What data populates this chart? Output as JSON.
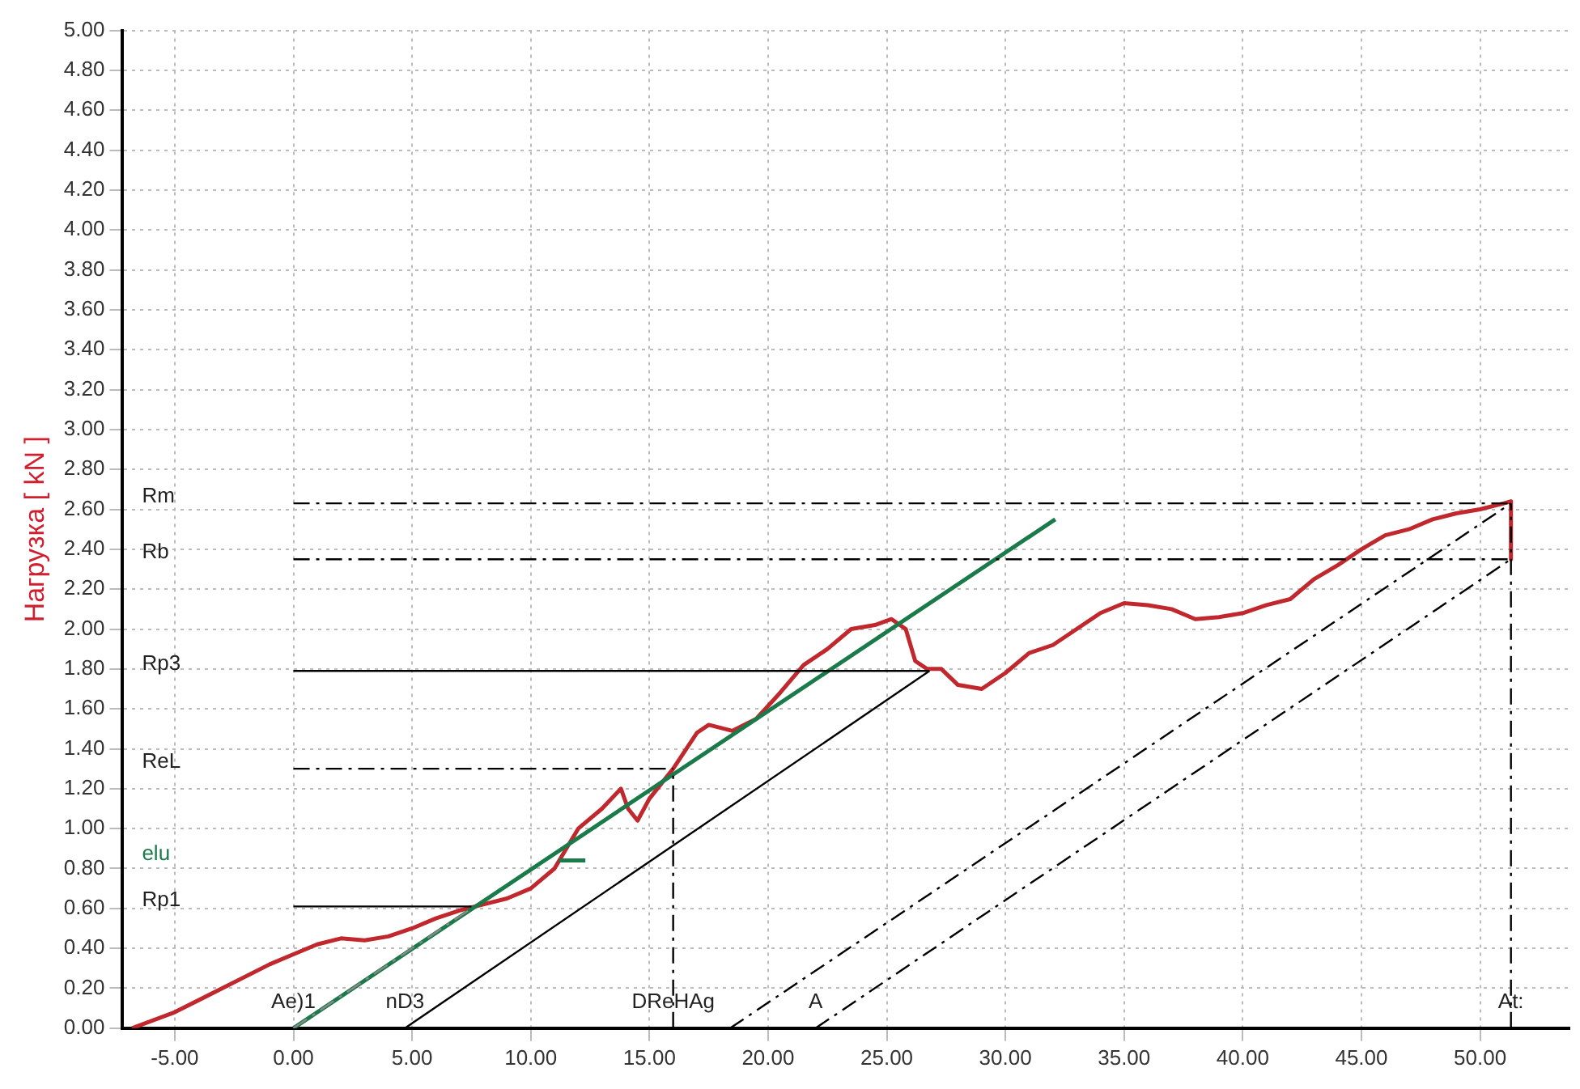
{
  "chart_data": {
    "type": "line",
    "ylabel": "Нагрузка [ kN ]",
    "xlim": [
      -7.2,
      53.8
    ],
    "ylim": [
      0,
      5
    ],
    "xticks": [
      {
        "value": -5,
        "label": "-5.00"
      },
      {
        "value": 0,
        "label": "0.00"
      },
      {
        "value": 5,
        "label": "5.00"
      },
      {
        "value": 10,
        "label": "10.00"
      },
      {
        "value": 15,
        "label": "15.00"
      },
      {
        "value": 20,
        "label": "20.00"
      },
      {
        "value": 25,
        "label": "25.00"
      },
      {
        "value": 30,
        "label": "30.00"
      },
      {
        "value": 35,
        "label": "35.00"
      },
      {
        "value": 40,
        "label": "40.00"
      },
      {
        "value": 45,
        "label": "45.00"
      },
      {
        "value": 50,
        "label": "50.00"
      }
    ],
    "yticks": [
      {
        "value": 0,
        "label": "0.00"
      },
      {
        "value": 0.2,
        "label": "0.20"
      },
      {
        "value": 0.4,
        "label": "0.40"
      },
      {
        "value": 0.6,
        "label": "0.60"
      },
      {
        "value": 0.8,
        "label": "0.80"
      },
      {
        "value": 1,
        "label": "1.00"
      },
      {
        "value": 1.2,
        "label": "1.20"
      },
      {
        "value": 1.4,
        "label": "1.40"
      },
      {
        "value": 1.6,
        "label": "1.60"
      },
      {
        "value": 1.8,
        "label": "1.80"
      },
      {
        "value": 2,
        "label": "2.00"
      },
      {
        "value": 2.2,
        "label": "2.20"
      },
      {
        "value": 2.4,
        "label": "2.40"
      },
      {
        "value": 2.6,
        "label": "2.60"
      },
      {
        "value": 2.8,
        "label": "2.80"
      },
      {
        "value": 3,
        "label": "3.00"
      },
      {
        "value": 3.2,
        "label": "3.20"
      },
      {
        "value": 3.4,
        "label": "3.40"
      },
      {
        "value": 3.6,
        "label": "3.60"
      },
      {
        "value": 3.8,
        "label": "3.80"
      },
      {
        "value": 4,
        "label": "4.00"
      },
      {
        "value": 4.2,
        "label": "4.20"
      },
      {
        "value": 4.4,
        "label": "4.40"
      },
      {
        "value": 4.6,
        "label": "4.60"
      },
      {
        "value": 4.8,
        "label": "4.80"
      },
      {
        "value": 5,
        "label": "5.00"
      }
    ],
    "grid": true,
    "legend": false,
    "marker": "none",
    "series": [
      {
        "color": "#000000",
        "line_style": "dashed",
        "x": [
          0,
          51.3
        ],
        "values": [
          2.63,
          2.63
        ]
      },
      {
        "color": "#000000",
        "line_style": "dashed",
        "x": [
          0,
          51.3
        ],
        "values": [
          2.35,
          2.35
        ]
      },
      {
        "color": "#000000",
        "line_style": "solid",
        "x": [
          0,
          26.8
        ],
        "values": [
          1.79,
          1.79
        ]
      },
      {
        "color": "#000000",
        "line_style": "dashed",
        "x": [
          0,
          16.0
        ],
        "values": [
          1.3,
          1.3
        ]
      },
      {
        "color": "#1a7a4a",
        "line_style": "solid",
        "x": [
          11.2,
          12.3
        ],
        "values": [
          0.84,
          0.84
        ]
      },
      {
        "color": "#000000",
        "line_style": "solid",
        "x": [
          0,
          7.5
        ],
        "values": [
          0.61,
          0.61
        ]
      },
      {
        "color": "#000000",
        "line_style": "dashed",
        "x": [
          16.0,
          16.0
        ],
        "values": [
          0,
          1.3
        ]
      },
      {
        "color": "#000000",
        "line_style": "dashed",
        "x": [
          51.3,
          51.3
        ],
        "values": [
          0,
          2.63
        ]
      },
      {
        "color": "#000000",
        "line_style": "solid",
        "x": [
          4.7,
          26.8
        ],
        "values": [
          0,
          1.79
        ]
      },
      {
        "color": "#000000",
        "line_style": "dashed",
        "x": [
          18.4,
          51.3
        ],
        "values": [
          0,
          2.63
        ]
      },
      {
        "color": "#000000",
        "line_style": "dashed",
        "x": [
          22.0,
          51.3
        ],
        "values": [
          0,
          2.35
        ]
      },
      {
        "color": "#888888",
        "line_style": "dashed",
        "x": [
          0,
          7.5
        ],
        "values": [
          0,
          0.6
        ]
      },
      {
        "color": "#1a7a4a",
        "line_style": "solid",
        "x": [
          0,
          32.1
        ],
        "values": [
          0,
          2.55
        ]
      },
      {
        "color": "#c0282d",
        "line_style": "solid",
        "x": [
          -6.8,
          -5,
          -3,
          -1,
          0,
          1,
          2,
          3,
          4,
          5,
          6,
          7,
          8,
          9,
          10,
          11,
          11.5,
          12,
          13,
          13.8,
          14.1,
          14.5,
          15,
          16,
          17,
          17.5,
          18.5,
          19.5,
          20.5,
          21.5,
          22.5,
          23.5,
          24.5,
          25.2,
          25.8,
          26.2,
          26.7,
          27.3,
          28,
          29,
          30,
          31,
          32,
          33,
          34,
          35,
          36,
          37,
          38,
          39,
          40,
          41,
          42,
          43,
          44,
          45,
          46,
          47,
          48,
          49,
          50,
          51,
          51.3,
          51.3
        ],
        "values": [
          0,
          0.08,
          0.2,
          0.32,
          0.37,
          0.42,
          0.45,
          0.44,
          0.46,
          0.5,
          0.55,
          0.59,
          0.62,
          0.65,
          0.7,
          0.8,
          0.9,
          1.0,
          1.1,
          1.2,
          1.1,
          1.04,
          1.15,
          1.3,
          1.48,
          1.52,
          1.49,
          1.55,
          1.68,
          1.82,
          1.9,
          2.0,
          2.02,
          2.05,
          2.0,
          1.84,
          1.8,
          1.8,
          1.72,
          1.7,
          1.78,
          1.88,
          1.92,
          2.0,
          2.08,
          2.13,
          2.12,
          2.1,
          2.05,
          2.06,
          2.08,
          2.12,
          2.15,
          2.25,
          2.32,
          2.4,
          2.47,
          2.5,
          2.55,
          2.58,
          2.6,
          2.63,
          2.64,
          2.35
        ]
      }
    ],
    "annotations": [
      "Rm",
      "Rb",
      "Rp3",
      "ReL",
      "elu",
      "Rp1",
      {
        "text": "Ae)1",
        "x": 0,
        "y": 0
      },
      {
        "text": "nD3",
        "x": 4.7,
        "y": 0
      },
      {
        "text": "DReHAg",
        "x": 16.0,
        "y": 0
      },
      {
        "text": "A",
        "x": 22.0,
        "y": 0
      },
      {
        "text": "At:",
        "x": 51.3,
        "y": 0
      }
    ]
  }
}
